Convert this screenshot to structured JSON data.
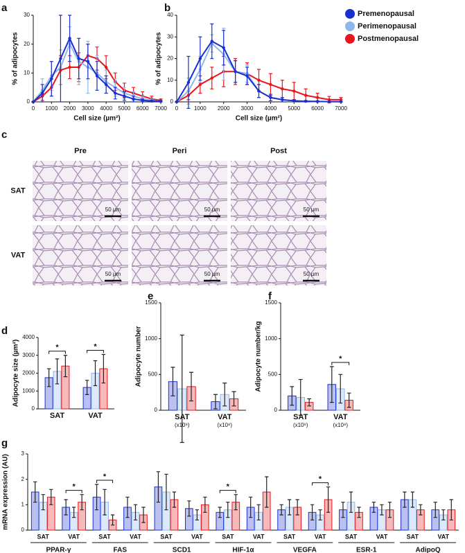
{
  "panel_labels": [
    "a",
    "b",
    "c",
    "d",
    "e",
    "f",
    "g"
  ],
  "histology": {
    "columns": [
      "Pre",
      "Peri",
      "Post"
    ],
    "rows": [
      "SAT",
      "VAT"
    ],
    "scale_bar": "50 µm"
  },
  "chart_data": [
    {
      "type": "line",
      "ylabel": "% of adipocytes",
      "xlabel": "Cell size (µm²)",
      "x": [
        0,
        500,
        1000,
        1500,
        2000,
        2500,
        3000,
        3500,
        4000,
        4500,
        5000,
        5500,
        6000,
        6500,
        7000
      ],
      "xlim": [
        0,
        7000
      ],
      "xticks": [
        0,
        1000,
        2000,
        3000,
        4000,
        5000,
        6000,
        7000
      ],
      "ylim": [
        0,
        30
      ],
      "yticks": [
        0,
        10,
        20,
        30
      ],
      "series": [
        {
          "name": "Premenopausal",
          "color": "#1a2fd0",
          "values": [
            0,
            3,
            8,
            15,
            22,
            15,
            14,
            9,
            6,
            3,
            2,
            1,
            0.5,
            0.3,
            0.2
          ],
          "errors": [
            0,
            3,
            6,
            15,
            8,
            7,
            6,
            5,
            3,
            2,
            1.5,
            1,
            0.5,
            0.3,
            0.2
          ]
        },
        {
          "name": "Perimenopausal",
          "color": "#8fb7ea",
          "values": [
            0,
            4,
            9,
            12,
            20,
            14,
            12,
            10,
            7,
            5,
            3,
            2,
            1,
            0.5,
            0.2
          ],
          "errors": [
            0,
            4,
            5,
            6,
            6,
            8,
            9,
            6,
            4,
            3,
            2,
            1.5,
            1,
            0.5,
            0.2
          ]
        },
        {
          "name": "Postmenopausal",
          "color": "#e8161c",
          "values": [
            0,
            2,
            5,
            11,
            12,
            12,
            16,
            15,
            12,
            7,
            4,
            3,
            2,
            1,
            0.5
          ],
          "errors": [
            0,
            1.5,
            3,
            5,
            4,
            5,
            4,
            4,
            4,
            3,
            2.5,
            2,
            1.5,
            1,
            0.5
          ]
        }
      ]
    },
    {
      "type": "line",
      "ylabel": "% of adipocytes",
      "xlabel": "Cell size (µm²)",
      "x": [
        0,
        500,
        1000,
        1500,
        2000,
        2500,
        3000,
        3500,
        4000,
        4500,
        5000,
        5500,
        6000,
        6500,
        7000
      ],
      "xlim": [
        0,
        7000
      ],
      "xticks": [
        0,
        1000,
        2000,
        3000,
        4000,
        5000,
        6000,
        7000
      ],
      "ylim": [
        0,
        40
      ],
      "yticks": [
        0,
        10,
        20,
        30,
        40
      ],
      "legend": "right",
      "series": [
        {
          "name": "Premenopausal",
          "color": "#1a2fd0",
          "values": [
            0,
            9,
            20,
            28,
            25,
            14,
            12,
            5,
            2,
            1,
            0.5,
            0.3,
            0.2,
            0.1,
            0.1
          ],
          "errors": [
            0,
            12,
            10,
            8,
            8,
            5,
            4,
            3,
            1.5,
            1,
            0.5,
            0.3,
            0.2,
            0.1,
            0.1
          ]
        },
        {
          "name": "Perimenopausal",
          "color": "#8fb7ea",
          "values": [
            0,
            5,
            15,
            27,
            22,
            14,
            13,
            5,
            2,
            1,
            0.5,
            0.3,
            0.2,
            0.1,
            0.1
          ],
          "errors": [
            0,
            6,
            6,
            4,
            12,
            5,
            4,
            3,
            1.5,
            1,
            0.5,
            0.3,
            0.2,
            0.1,
            0.1
          ]
        },
        {
          "name": "Postmenopausal",
          "color": "#e8161c",
          "values": [
            0,
            3,
            8,
            11,
            14,
            14,
            13,
            10,
            8,
            6,
            5,
            3,
            2,
            1,
            1
          ],
          "errors": [
            0,
            2,
            4,
            5,
            7,
            6,
            5,
            5,
            5,
            4,
            4,
            3,
            2,
            1.5,
            1
          ]
        }
      ]
    },
    {
      "type": "bar",
      "ylabel": "Adipocyte size (µm²)",
      "categories": [
        "SAT",
        "VAT"
      ],
      "ylim": [
        0,
        4000
      ],
      "yticks": [
        0,
        1000,
        2000,
        3000,
        4000
      ],
      "significance": [
        {
          "category": 0,
          "label": "*"
        },
        {
          "category": 1,
          "label": "*"
        }
      ],
      "series": [
        {
          "name": "Premenopausal",
          "color": "#1a2fd0",
          "values": [
            1750,
            1200
          ],
          "errors": [
            500,
            400
          ]
        },
        {
          "name": "Perimenopausal",
          "color": "#8fb7ea",
          "values": [
            2100,
            2000
          ],
          "errors": [
            700,
            700
          ]
        },
        {
          "name": "Postmenopausal",
          "color": "#e8161c",
          "values": [
            2400,
            2250
          ],
          "errors": [
            600,
            800
          ]
        }
      ]
    },
    {
      "type": "bar",
      "ylabel": "Adipocyte number",
      "categories": [
        "SAT",
        "VAT"
      ],
      "category_notes": [
        "(x10⁸)",
        "(x10⁸)"
      ],
      "ylim": [
        0,
        1500
      ],
      "yticks": [
        0,
        500,
        1000,
        1500
      ],
      "series": [
        {
          "name": "Premenopausal",
          "color": "#1a2fd0",
          "values": [
            400,
            120
          ],
          "errors": [
            200,
            100
          ]
        },
        {
          "name": "Perimenopausal",
          "color": "#8fb7ea",
          "values": [
            300,
            220
          ],
          "errors": [
            750,
            160
          ]
        },
        {
          "name": "Postmenopausal",
          "color": "#e8161c",
          "values": [
            330,
            160
          ],
          "errors": [
            200,
            100
          ]
        }
      ]
    },
    {
      "type": "bar",
      "ylabel": "Adipocyte number/kg",
      "categories": [
        "SAT",
        "VAT"
      ],
      "category_notes": [
        "(x10⁸)",
        "(x10⁸)"
      ],
      "ylim": [
        0,
        1500
      ],
      "yticks": [
        0,
        500,
        1000,
        1500
      ],
      "significance": [
        {
          "category": 1,
          "label": "*"
        }
      ],
      "series": [
        {
          "name": "Premenopausal",
          "color": "#1a2fd0",
          "values": [
            200,
            360
          ],
          "errors": [
            130,
            250
          ]
        },
        {
          "name": "Perimenopausal",
          "color": "#8fb7ea",
          "values": [
            180,
            300
          ],
          "errors": [
            250,
            200
          ]
        },
        {
          "name": "Postmenopausal",
          "color": "#e8161c",
          "values": [
            110,
            140
          ],
          "errors": [
            50,
            100
          ]
        }
      ]
    },
    {
      "type": "bar",
      "ylabel": "mRNA expression (AU)",
      "categories": [
        "SAT",
        "VAT",
        "SAT",
        "VAT",
        "SAT",
        "VAT",
        "SAT",
        "VAT",
        "SAT",
        "VAT",
        "SAT",
        "VAT",
        "SAT",
        "VAT"
      ],
      "groups": [
        "PPAR-γ",
        "FAS",
        "SCD1",
        "HIF-1α",
        "VEGFA",
        "ESR-1",
        "AdipoQ"
      ],
      "ylim": [
        0,
        3
      ],
      "yticks": [
        0,
        1,
        2,
        3
      ],
      "significance": [
        {
          "category": 1,
          "label": "*"
        },
        {
          "category": 2,
          "label": "*"
        },
        {
          "category": 6,
          "label": "*"
        },
        {
          "category": 9,
          "label": "*"
        }
      ],
      "series": [
        {
          "name": "Premenopausal",
          "color": "#1a2fd0",
          "values": [
            1.5,
            0.9,
            1.3,
            0.9,
            1.7,
            0.85,
            0.7,
            0.9,
            0.8,
            0.7,
            0.8,
            0.9,
            1.2,
            0.8
          ],
          "errors": [
            0.4,
            0.3,
            0.5,
            0.4,
            0.6,
            0.3,
            0.2,
            0.4,
            0.2,
            0.3,
            0.3,
            0.2,
            0.3,
            0.3
          ]
        },
        {
          "name": "Perimenopausal",
          "color": "#8fb7ea",
          "values": [
            1.1,
            0.7,
            1.1,
            0.7,
            1.5,
            0.6,
            0.8,
            0.7,
            0.9,
            0.6,
            1.1,
            0.8,
            1.2,
            0.6
          ],
          "errors": [
            0.3,
            0.2,
            0.5,
            0.3,
            0.7,
            0.2,
            0.3,
            0.3,
            0.3,
            0.2,
            0.4,
            0.2,
            0.3,
            0.2
          ]
        },
        {
          "name": "Postmenopausal",
          "color": "#e8161c",
          "values": [
            1.3,
            1.1,
            0.4,
            0.6,
            1.2,
            1.0,
            1.1,
            1.5,
            0.9,
            1.2,
            0.7,
            0.8,
            0.8,
            0.8
          ],
          "errors": [
            0.3,
            0.3,
            0.2,
            0.3,
            0.3,
            0.3,
            0.3,
            0.6,
            0.3,
            0.5,
            0.2,
            0.3,
            0.2,
            0.4
          ]
        }
      ]
    }
  ]
}
